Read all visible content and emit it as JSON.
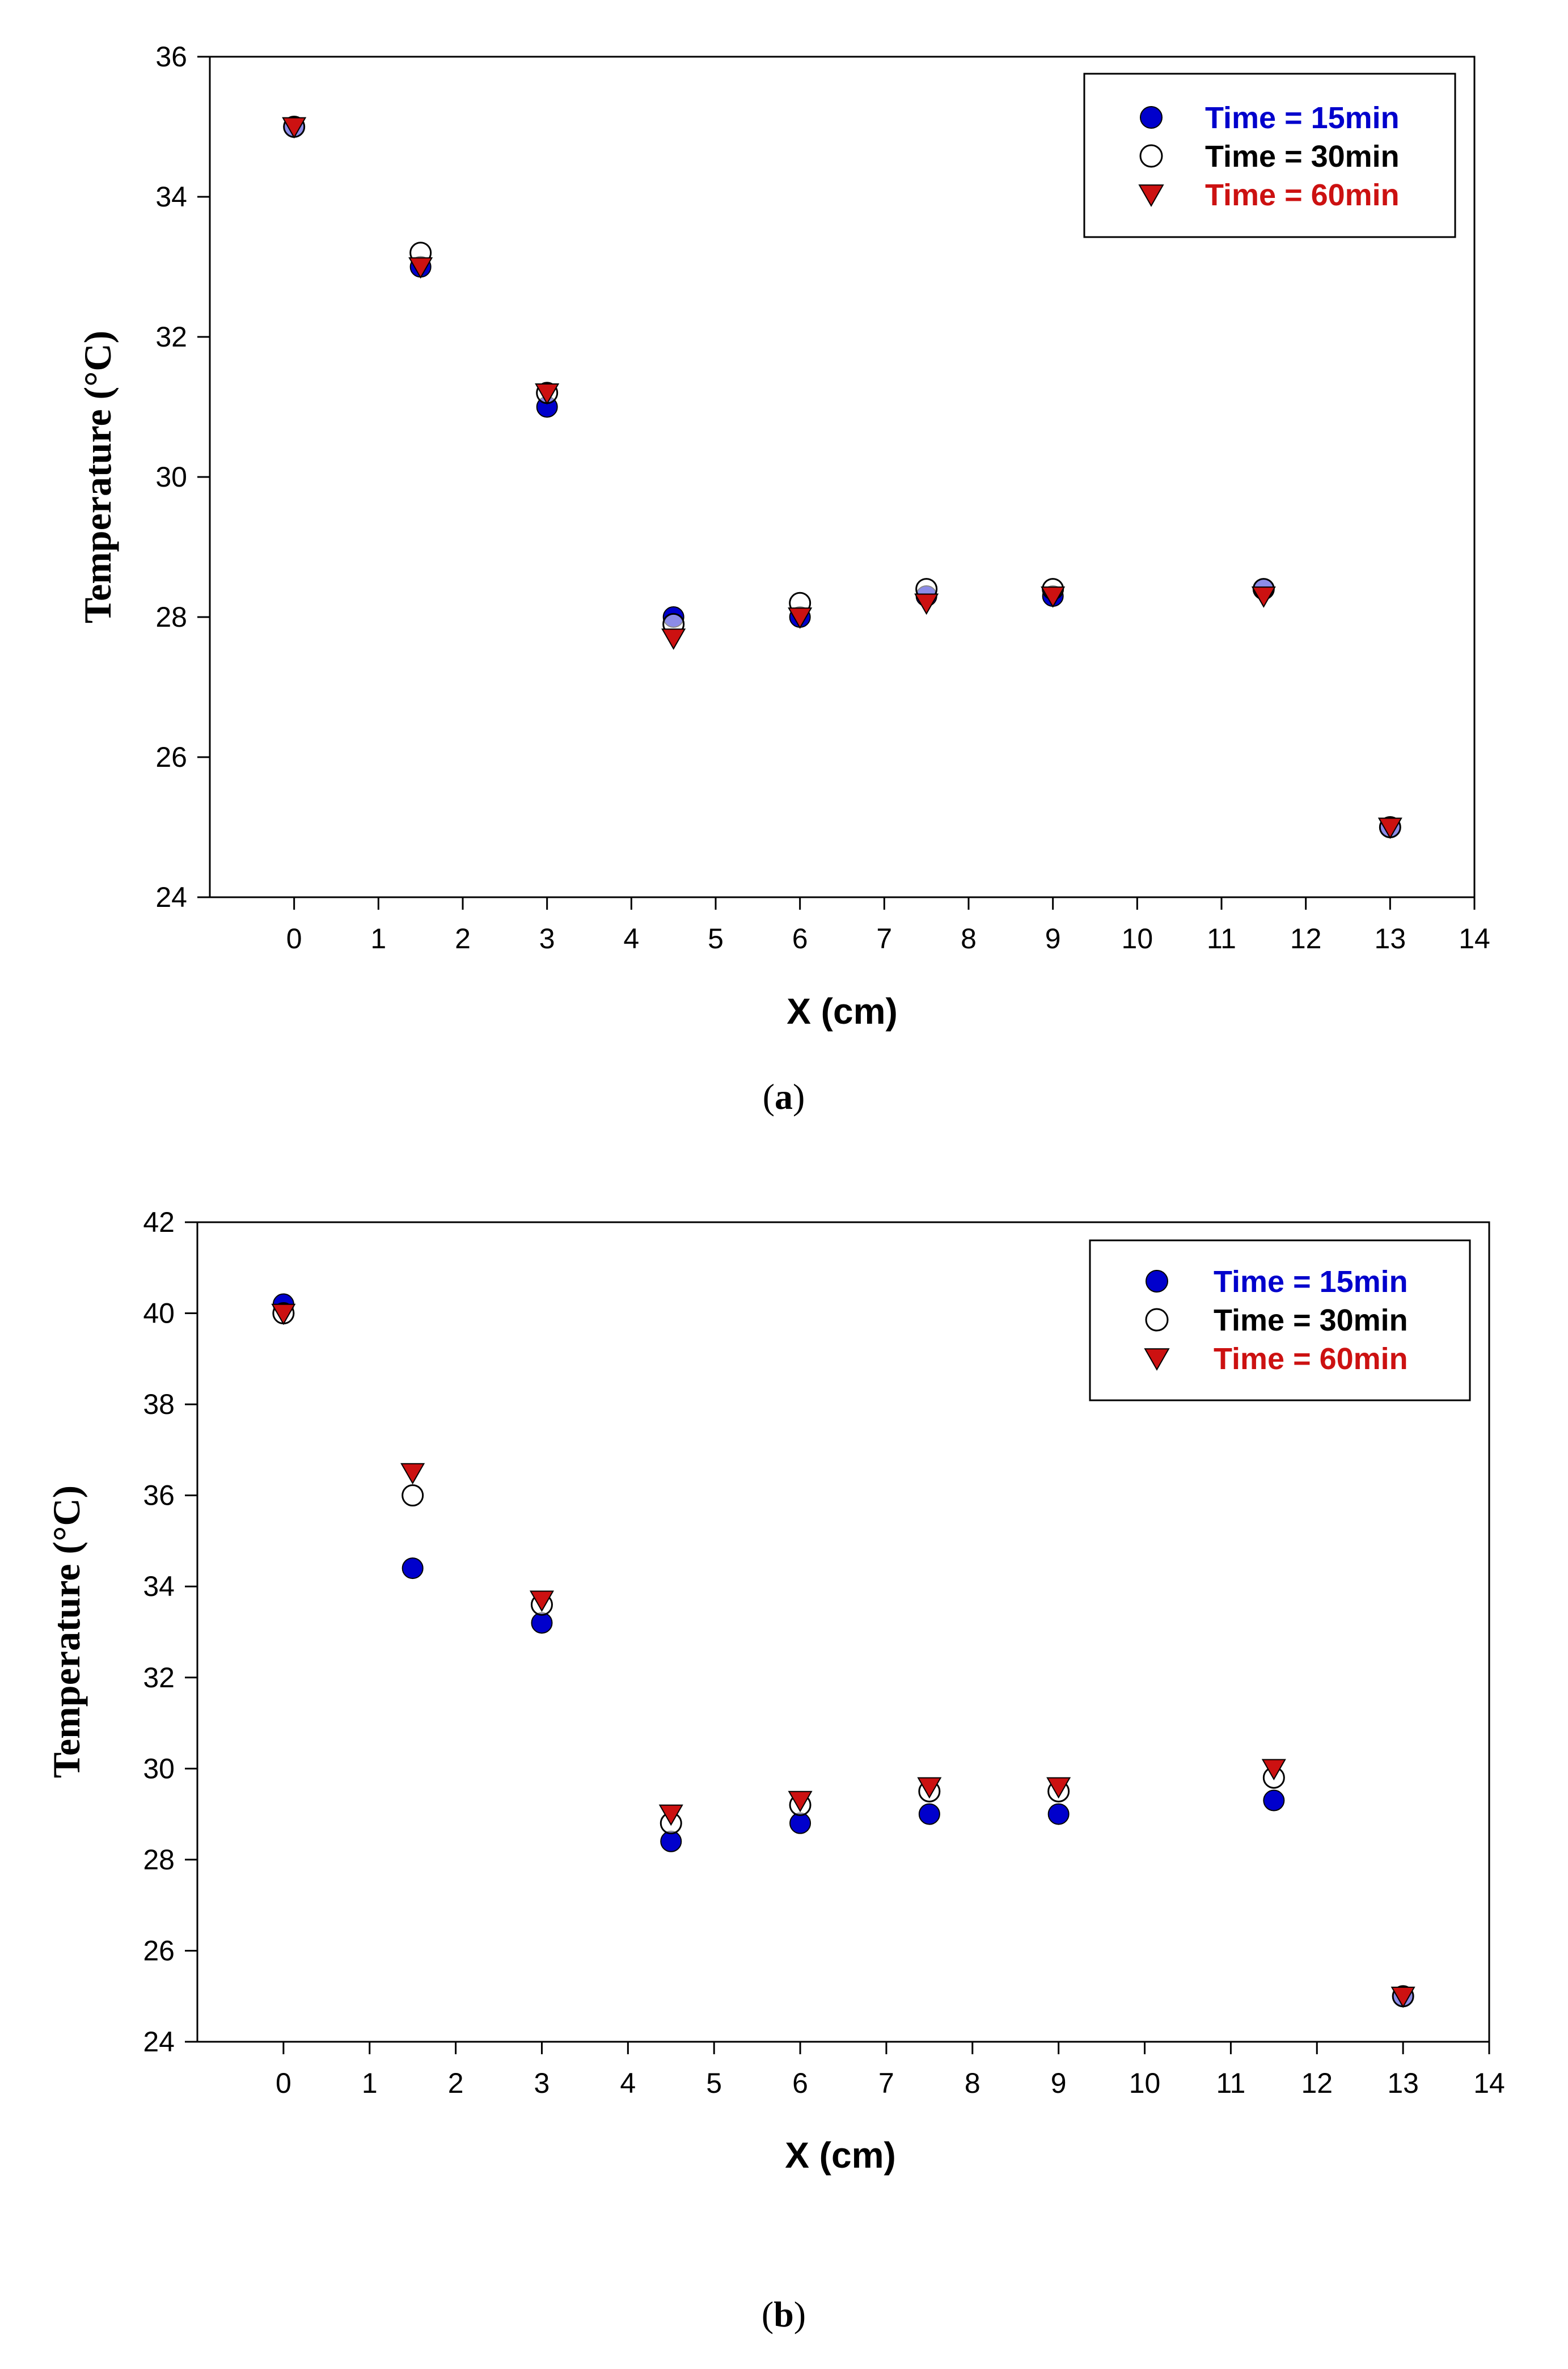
{
  "chart_data": [
    {
      "type": "scatter",
      "panel_label": "a",
      "xlabel": "X (cm)",
      "ylabel": "Temperature (°C)",
      "xlim": [
        -1,
        14
      ],
      "ylim": [
        24,
        36
      ],
      "xticks": [
        0,
        1,
        2,
        3,
        4,
        5,
        6,
        7,
        8,
        9,
        10,
        11,
        12,
        13,
        14
      ],
      "yticks": [
        24,
        26,
        28,
        30,
        32,
        34,
        36
      ],
      "grid": false,
      "legend_position": "top-right",
      "series": [
        {
          "name": "Time = 15min",
          "marker": "filled-circle",
          "color": "#0000cc",
          "x": [
            0,
            1.5,
            3,
            4.5,
            6,
            7.5,
            9,
            11.5,
            13
          ],
          "y": [
            35.0,
            33.0,
            31.0,
            28.0,
            28.0,
            28.3,
            28.3,
            28.4,
            25.0
          ]
        },
        {
          "name": "Time = 30min",
          "marker": "open-circle",
          "color": "#000000",
          "x": [
            0,
            1.5,
            3,
            4.5,
            6,
            7.5,
            9,
            11.5,
            13
          ],
          "y": [
            35.0,
            33.2,
            31.2,
            27.9,
            28.2,
            28.4,
            28.4,
            28.4,
            25.0
          ]
        },
        {
          "name": "Time = 60min",
          "marker": "down-triangle",
          "color": "#cc1111",
          "x": [
            0,
            1.5,
            3,
            4.5,
            6,
            7.5,
            9,
            11.5,
            13
          ],
          "y": [
            35.0,
            33.0,
            31.2,
            27.7,
            28.0,
            28.2,
            28.3,
            28.3,
            25.0
          ]
        }
      ]
    },
    {
      "type": "scatter",
      "panel_label": "b",
      "xlabel": "X (cm)",
      "ylabel": "Temperature (°C)",
      "xlim": [
        -1,
        14
      ],
      "ylim": [
        24,
        42
      ],
      "xticks": [
        0,
        1,
        2,
        3,
        4,
        5,
        6,
        7,
        8,
        9,
        10,
        11,
        12,
        13,
        14
      ],
      "yticks": [
        24,
        26,
        28,
        30,
        32,
        34,
        36,
        38,
        40,
        42
      ],
      "grid": false,
      "legend_position": "top-right",
      "series": [
        {
          "name": "Time = 15min",
          "marker": "filled-circle",
          "color": "#0000cc",
          "x": [
            0,
            1.5,
            3,
            4.5,
            6,
            7.5,
            9,
            11.5,
            13
          ],
          "y": [
            40.2,
            34.4,
            33.2,
            28.4,
            28.8,
            29.0,
            29.0,
            29.3,
            25.0
          ]
        },
        {
          "name": "Time = 30min",
          "marker": "open-circle",
          "color": "#000000",
          "x": [
            0,
            1.5,
            3,
            4.5,
            6,
            7.5,
            9,
            11.5,
            13
          ],
          "y": [
            40.0,
            36.0,
            33.6,
            28.8,
            29.2,
            29.5,
            29.5,
            29.8,
            25.0
          ]
        },
        {
          "name": "Time = 60min",
          "marker": "down-triangle",
          "color": "#cc1111",
          "x": [
            0,
            1.5,
            3,
            4.5,
            6,
            7.5,
            9,
            11.5,
            13
          ],
          "y": [
            40.0,
            36.5,
            33.7,
            29.0,
            29.3,
            29.6,
            29.6,
            30.0,
            25.0
          ]
        }
      ]
    }
  ]
}
